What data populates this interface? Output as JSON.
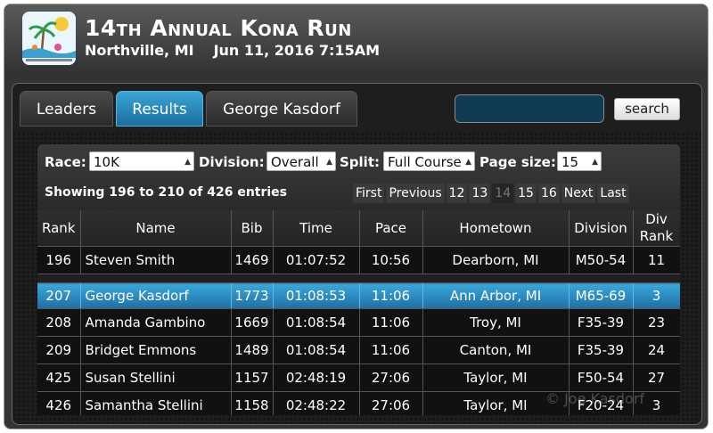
{
  "event": {
    "title": "14th Annual Kona Run",
    "location": "Northville, MI",
    "datetime": "Jun 11, 2016 7:15AM"
  },
  "tabs": [
    {
      "label": "Leaders",
      "active": false
    },
    {
      "label": "Results",
      "active": true
    },
    {
      "label": "George Kasdorf",
      "active": false
    }
  ],
  "search": {
    "value": "",
    "button_label": "search"
  },
  "filters": {
    "race_label": "Race:",
    "race_value": "10K",
    "division_label": "Division:",
    "division_value": "Overall",
    "split_label": "Split:",
    "split_value": "Full Course",
    "page_size_label": "Page size:",
    "page_size_value": "15"
  },
  "entries_text": "Showing 196 to 210 of 426 entries",
  "pagination": [
    "First",
    "Previous",
    "12",
    "13",
    "14",
    "15",
    "16",
    "Next",
    "Last"
  ],
  "pagination_current": "14",
  "table": {
    "columns": [
      "Rank",
      "Name",
      "Bib",
      "Time",
      "Pace",
      "Hometown",
      "Division",
      "Div Rank"
    ],
    "rows": [
      [
        "196",
        "Steven Smith",
        "1469",
        "01:07:52",
        "10:56",
        "Dearborn, MI",
        "M50-54",
        "11"
      ],
      [
        "207",
        "George Kasdorf",
        "1773",
        "01:08:53",
        "11:06",
        "Ann Arbor, MI",
        "M65-69",
        "3"
      ],
      [
        "208",
        "Amanda Gambino",
        "1669",
        "01:08:54",
        "11:06",
        "Troy, MI",
        "F35-39",
        "23"
      ],
      [
        "209",
        "Bridget Emmons",
        "1489",
        "01:08:54",
        "11:06",
        "Canton, MI",
        "F35-39",
        "24"
      ],
      [
        "425",
        "Susan Stellini",
        "1157",
        "02:48:19",
        "27:06",
        "Taylor, MI",
        "F50-54",
        "27"
      ],
      [
        "426",
        "Samantha Stellini",
        "1158",
        "02:48:22",
        "27:06",
        "Taylor, MI",
        "F20-24",
        "3"
      ]
    ],
    "highlighted_bib": "1773"
  },
  "watermark": "© Joe Kasdorf",
  "colors": {
    "accent": "#2a8fc4",
    "background": "#333333"
  }
}
